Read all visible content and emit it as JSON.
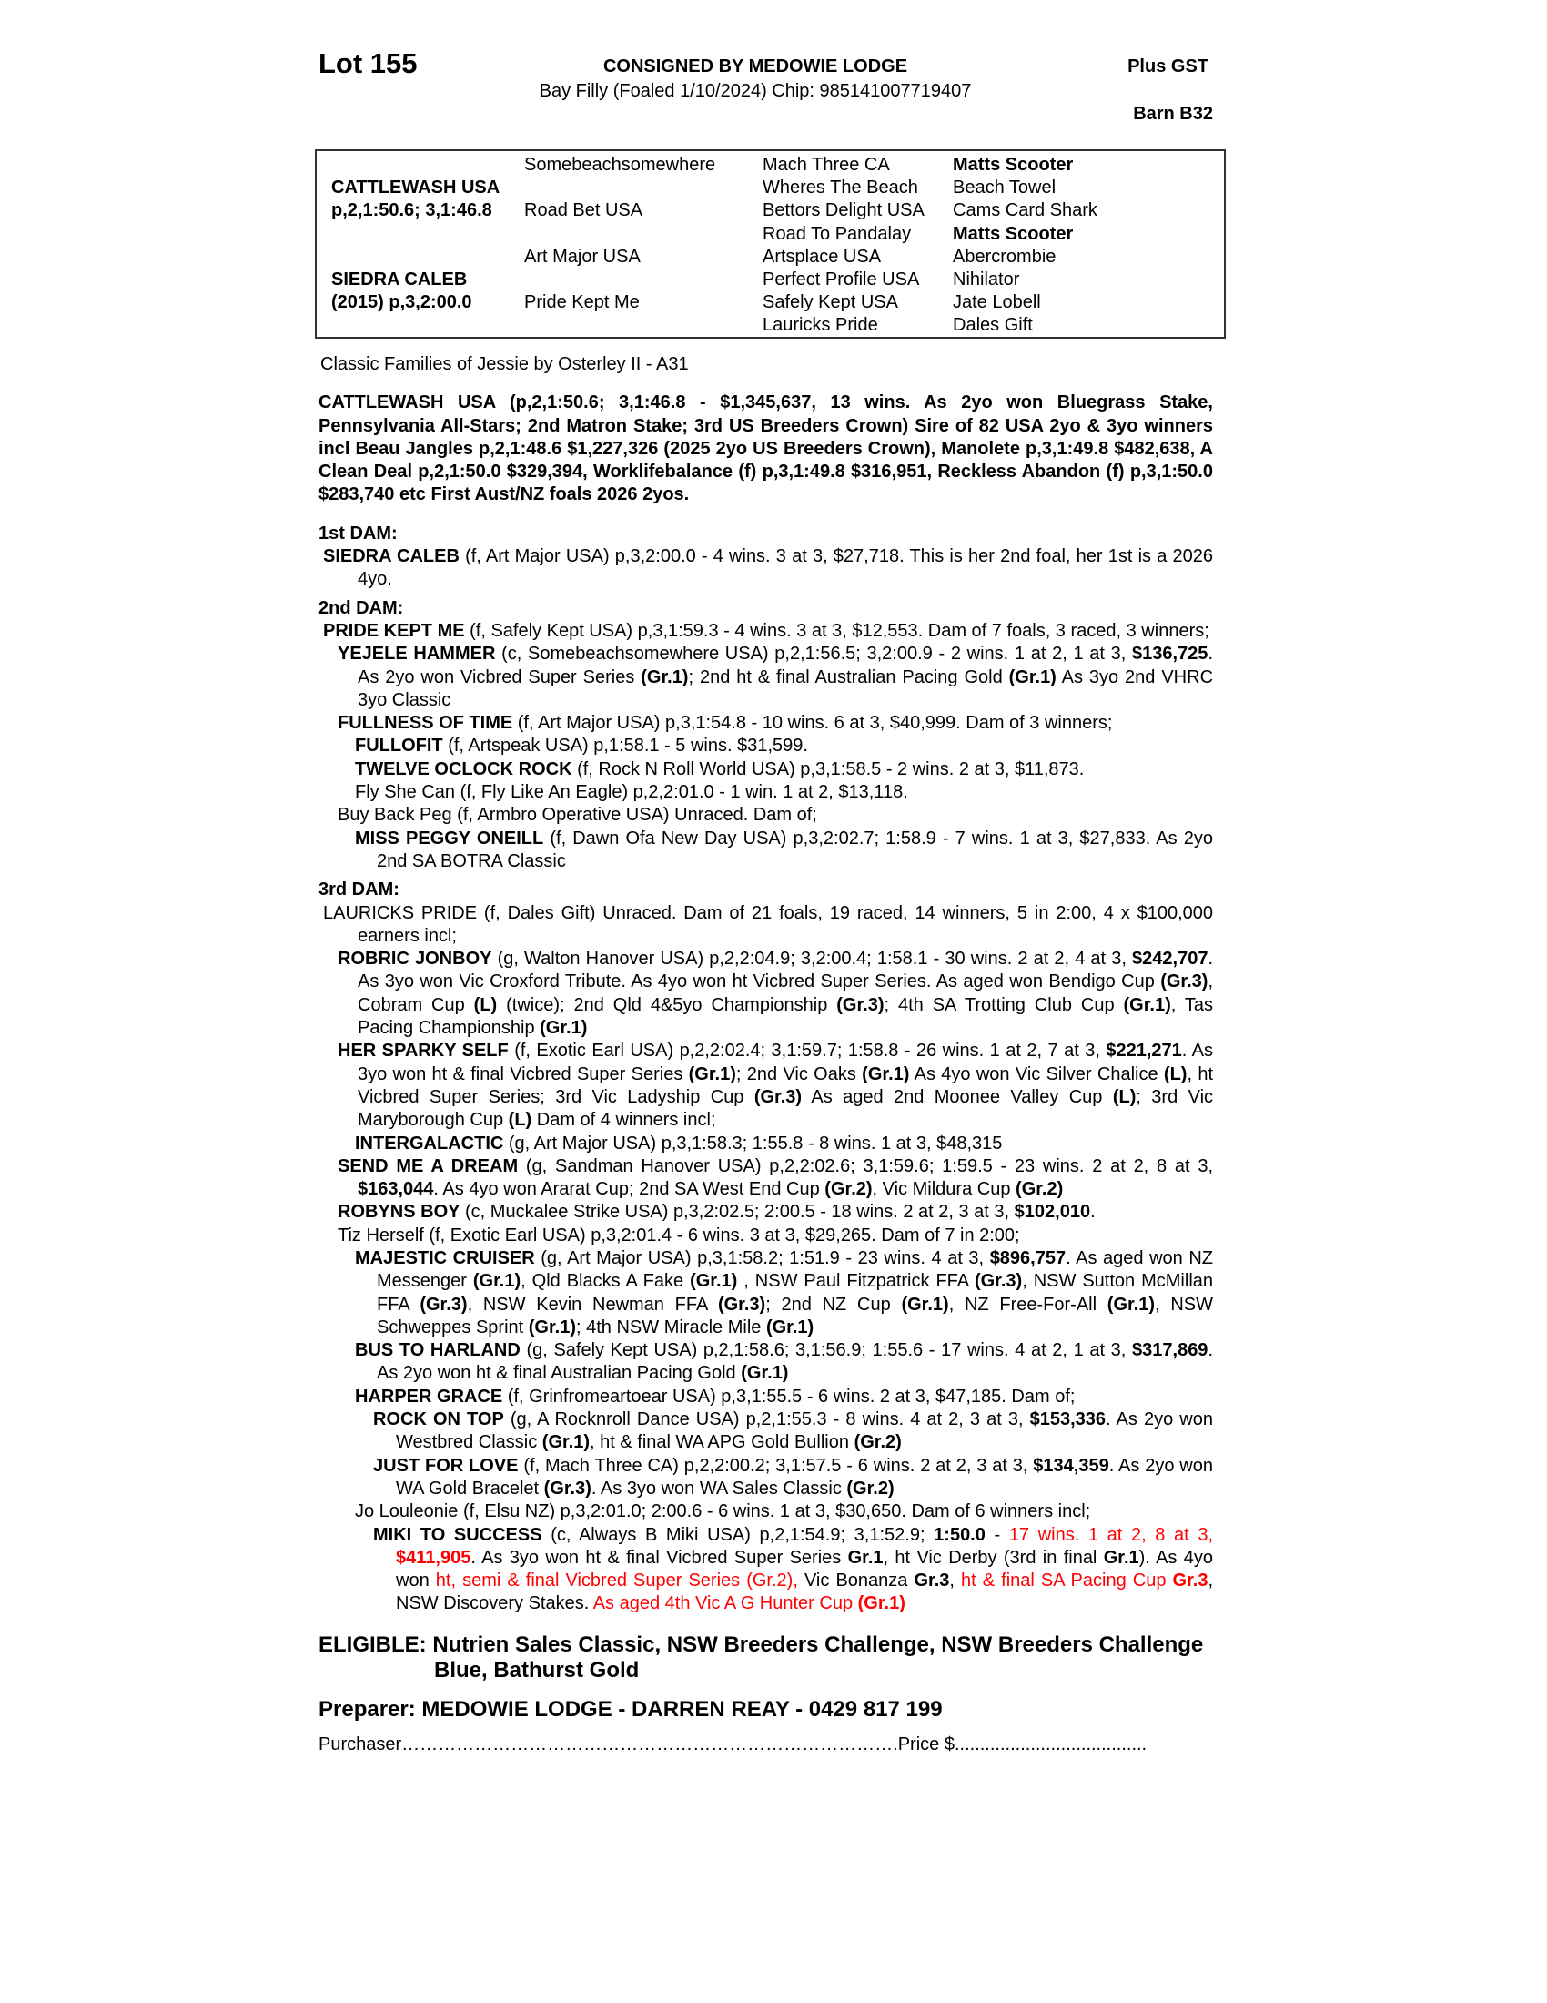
{
  "header": {
    "lot": "Lot 155",
    "consigned": "CONSIGNED BY MEDOWIE LODGE",
    "description": "Bay Filly (Foaled 1/10/2024) Chip: 985141007719407",
    "gst": "Plus  GST",
    "barn": "Barn B32"
  },
  "pedigree": {
    "sire_name": "CATTLEWASH USA",
    "sire_record": "p,2,1:50.6; 3,1:46.8",
    "dam_name": "SIEDRA CALEB",
    "dam_record": "(2015) p,3,2:00.0",
    "gen2": [
      "Somebeachsomewhere",
      "Road Bet USA",
      "Art Major USA",
      "Pride Kept Me"
    ],
    "gen3": [
      "Mach Three CA",
      "Wheres The Beach",
      "Bettors Delight USA",
      "Road To Pandalay",
      "Artsplace USA",
      "Perfect Profile USA",
      "Safely Kept USA",
      "Lauricks Pride"
    ],
    "gen4": [
      "Matts Scooter",
      "Beach Towel",
      "Cams Card Shark",
      "Matts Scooter",
      "Abercrombie",
      "Nihilator",
      "Jate Lobell",
      "Dales Gift"
    ]
  },
  "family": "Classic Families of Jessie by Osterley II - A31",
  "sire_para": "CATTLEWASH USA (p,2,1:50.6; 3,1:46.8 - $1,345,637, 13 wins. As 2yo won Bluegrass Stake, Pennsylvania All-Stars; 2nd Matron Stake; 3rd US Breeders Crown) Sire of 82 USA 2yo & 3yo winners incl Beau Jangles p,2,1:48.6 $1,227,326 (2025 2yo US Breeders Crown), Manolete p,3,1:49.8 $482,638, A Clean Deal p,2,1:50.0 $329,394, Worklifebalance (f) p,3,1:49.8 $316,951, Reckless Abandon (f) p,3,1:50.0 $283,740 etc First Aust/NZ foals 2026 2yos.",
  "sections": [
    {
      "heading": "1st DAM:",
      "paras": [
        {
          "level": 0,
          "runs": [
            {
              "t": "SIEDRA CALEB",
              "s": "b"
            },
            {
              "t": " (f, Art Major USA) p,3,2:00.0 - 4 wins. 3 at 3, $27,718. This is her 2nd foal, her 1st is a 2026 4yo.",
              "s": ""
            }
          ]
        }
      ]
    },
    {
      "heading": "2nd DAM:",
      "paras": [
        {
          "level": 0,
          "runs": [
            {
              "t": "PRIDE KEPT ME",
              "s": "b"
            },
            {
              "t": " (f, Safely Kept USA) p,3,1:59.3 - 4 wins. 3 at 3, $12,553. Dam of 7 foals, 3 raced, 3 winners;",
              "s": ""
            }
          ]
        },
        {
          "level": 1,
          "runs": [
            {
              "t": "YEJELE HAMMER",
              "s": "b"
            },
            {
              "t": " (c, Somebeachsomewhere USA) p,2,1:56.5; 3,2:00.9 - 2 wins. 1 at 2, 1 at 3, ",
              "s": ""
            },
            {
              "t": "$136,725",
              "s": "b"
            },
            {
              "t": ". As 2yo won Vicbred Super Series ",
              "s": ""
            },
            {
              "t": "(Gr.1)",
              "s": "b"
            },
            {
              "t": "; 2nd ht & final Australian Pacing Gold ",
              "s": ""
            },
            {
              "t": "(Gr.1)",
              "s": "b"
            },
            {
              "t": " As 3yo 2nd VHRC 3yo Classic",
              "s": ""
            }
          ]
        },
        {
          "level": 1,
          "runs": [
            {
              "t": "FULLNESS OF TIME",
              "s": "b"
            },
            {
              "t": " (f, Art Major USA) p,3,1:54.8 - 10 wins. 6 at 3, $40,999. Dam of 3 winners;",
              "s": ""
            }
          ]
        },
        {
          "level": 2,
          "runs": [
            {
              "t": "FULLOFIT",
              "s": "b"
            },
            {
              "t": " (f, Artspeak USA) p,1:58.1 - 5 wins. $31,599.",
              "s": ""
            }
          ]
        },
        {
          "level": 2,
          "runs": [
            {
              "t": "TWELVE OCLOCK ROCK",
              "s": "b"
            },
            {
              "t": " (f, Rock N Roll World USA) p,3,1:58.5 - 2 wins. 2 at 3, $11,873.",
              "s": ""
            }
          ]
        },
        {
          "level": 2,
          "runs": [
            {
              "t": "Fly She Can (f, Fly Like An Eagle) p,2,2:01.0 - 1 win. 1 at 2, $13,118.",
              "s": ""
            }
          ]
        },
        {
          "level": 1,
          "runs": [
            {
              "t": "Buy Back Peg (f, Armbro Operative USA) Unraced. Dam of;",
              "s": ""
            }
          ]
        },
        {
          "level": 2,
          "runs": [
            {
              "t": "MISS PEGGY ONEILL",
              "s": "b"
            },
            {
              "t": " (f, Dawn Ofa New Day USA) p,3,2:02.7; 1:58.9 - 7 wins. 1 at 3, $27,833. As 2yo 2nd SA BOTRA Classic",
              "s": ""
            }
          ]
        }
      ]
    },
    {
      "heading": "3rd DAM:",
      "paras": [
        {
          "level": 0,
          "runs": [
            {
              "t": "LAURICKS PRIDE (f, Dales Gift) Unraced. Dam of 21 foals, 19 raced, 14 winners, 5 in 2:00, 4 x $100,000 earners incl;",
              "s": ""
            }
          ]
        },
        {
          "level": 1,
          "runs": [
            {
              "t": "ROBRIC JONBOY",
              "s": "b"
            },
            {
              "t": " (g, Walton Hanover USA) p,2,2:04.9; 3,2:00.4; 1:58.1 - 30 wins. 2 at 2, 4 at 3, ",
              "s": ""
            },
            {
              "t": "$242,707",
              "s": "b"
            },
            {
              "t": ". As 3yo won Vic Croxford Tribute. As 4yo won ht Vicbred Super Series. As aged won Bendigo Cup ",
              "s": ""
            },
            {
              "t": "(Gr.3)",
              "s": "b"
            },
            {
              "t": ", Cobram Cup ",
              "s": ""
            },
            {
              "t": "(L)",
              "s": "b"
            },
            {
              "t": " (twice); 2nd Qld 4&5yo Championship ",
              "s": ""
            },
            {
              "t": "(Gr.3)",
              "s": "b"
            },
            {
              "t": "; 4th SA Trotting Club Cup ",
              "s": ""
            },
            {
              "t": "(Gr.1)",
              "s": "b"
            },
            {
              "t": ", Tas Pacing Championship ",
              "s": ""
            },
            {
              "t": "(Gr.1)",
              "s": "b"
            }
          ]
        },
        {
          "level": 1,
          "runs": [
            {
              "t": "HER SPARKY SELF",
              "s": "b"
            },
            {
              "t": " (f, Exotic Earl USA) p,2,2:02.4; 3,1:59.7; 1:58.8 - 26 wins. 1 at 2, 7 at 3, ",
              "s": ""
            },
            {
              "t": "$221,271",
              "s": "b"
            },
            {
              "t": ". As 3yo won ht & final Vicbred Super Series ",
              "s": ""
            },
            {
              "t": "(Gr.1)",
              "s": "b"
            },
            {
              "t": "; 2nd Vic Oaks ",
              "s": ""
            },
            {
              "t": "(Gr.1)",
              "s": "b"
            },
            {
              "t": " As 4yo won Vic Silver Chalice ",
              "s": ""
            },
            {
              "t": "(L)",
              "s": "b"
            },
            {
              "t": ", ht Vicbred Super Series; 3rd Vic Ladyship Cup ",
              "s": ""
            },
            {
              "t": "(Gr.3)",
              "s": "b"
            },
            {
              "t": " As aged 2nd Moonee Valley Cup ",
              "s": ""
            },
            {
              "t": "(L)",
              "s": "b"
            },
            {
              "t": "; 3rd Vic Maryborough Cup ",
              "s": ""
            },
            {
              "t": "(L)",
              "s": "b"
            },
            {
              "t": " Dam of 4 winners incl;",
              "s": ""
            }
          ]
        },
        {
          "level": 2,
          "runs": [
            {
              "t": "INTERGALACTIC",
              "s": "b"
            },
            {
              "t": " (g, Art Major USA) p,3,1:58.3; 1:55.8 - 8 wins. 1 at 3, $48,315",
              "s": ""
            }
          ]
        },
        {
          "level": 1,
          "runs": [
            {
              "t": "SEND ME A DREAM",
              "s": "b"
            },
            {
              "t": " (g, Sandman Hanover USA) p,2,2:02.6; 3,1:59.6; 1:59.5 - 23 wins. 2 at 2, 8 at 3, ",
              "s": ""
            },
            {
              "t": "$163,044",
              "s": "b"
            },
            {
              "t": ". As 4yo won Ararat Cup; 2nd SA West End Cup ",
              "s": ""
            },
            {
              "t": "(Gr.2)",
              "s": "b"
            },
            {
              "t": ", Vic Mildura Cup ",
              "s": ""
            },
            {
              "t": "(Gr.2)",
              "s": "b"
            }
          ]
        },
        {
          "level": 1,
          "runs": [
            {
              "t": "ROBYNS BOY",
              "s": "b"
            },
            {
              "t": " (c, Muckalee Strike USA) p,3,2:02.5; 2:00.5 - 18 wins. 2 at 2, 3 at 3, ",
              "s": ""
            },
            {
              "t": "$102,010",
              "s": "b"
            },
            {
              "t": ".",
              "s": ""
            }
          ]
        },
        {
          "level": 1,
          "runs": [
            {
              "t": "Tiz Herself (f, Exotic Earl USA) p,3,2:01.4 - 6 wins. 3 at 3, $29,265. Dam of 7 in 2:00;",
              "s": ""
            }
          ]
        },
        {
          "level": 2,
          "runs": [
            {
              "t": "MAJESTIC CRUISER",
              "s": "b"
            },
            {
              "t": " (g, Art Major USA) p,3,1:58.2; 1:51.9 - 23 wins. 4 at 3, ",
              "s": ""
            },
            {
              "t": "$896,757",
              "s": "b"
            },
            {
              "t": ". As aged won NZ Messenger ",
              "s": ""
            },
            {
              "t": "(Gr.1)",
              "s": "b"
            },
            {
              "t": ", Qld Blacks A Fake ",
              "s": ""
            },
            {
              "t": "(Gr.1)",
              "s": "b"
            },
            {
              "t": " , NSW Paul Fitzpatrick FFA ",
              "s": ""
            },
            {
              "t": "(Gr.3)",
              "s": "b"
            },
            {
              "t": ", NSW Sutton McMillan FFA ",
              "s": ""
            },
            {
              "t": "(Gr.3)",
              "s": "b"
            },
            {
              "t": ", NSW Kevin Newman FFA ",
              "s": ""
            },
            {
              "t": "(Gr.3)",
              "s": "b"
            },
            {
              "t": "; 2nd NZ Cup ",
              "s": ""
            },
            {
              "t": "(Gr.1)",
              "s": "b"
            },
            {
              "t": ", NZ Free-For-All ",
              "s": ""
            },
            {
              "t": "(Gr.1)",
              "s": "b"
            },
            {
              "t": ", NSW Schweppes Sprint ",
              "s": ""
            },
            {
              "t": "(Gr.1)",
              "s": "b"
            },
            {
              "t": "; 4th NSW Miracle Mile ",
              "s": ""
            },
            {
              "t": "(Gr.1)",
              "s": "b"
            }
          ]
        },
        {
          "level": 2,
          "runs": [
            {
              "t": "BUS TO HARLAND",
              "s": "b"
            },
            {
              "t": " (g, Safely Kept USA) p,2,1:58.6; 3,1:56.9; 1:55.6 - 17 wins. 4 at 2, 1 at 3, ",
              "s": ""
            },
            {
              "t": "$317,869",
              "s": "b"
            },
            {
              "t": ". As 2yo won ht & final Australian Pacing Gold ",
              "s": ""
            },
            {
              "t": "(Gr.1)",
              "s": "b"
            }
          ]
        },
        {
          "level": 2,
          "runs": [
            {
              "t": "HARPER GRACE",
              "s": "b"
            },
            {
              "t": " (f, Grinfromeartoear USA) p,3,1:55.5 - 6 wins. 2 at 3, $47,185. Dam of;",
              "s": ""
            }
          ]
        },
        {
          "level": 3,
          "runs": [
            {
              "t": "ROCK ON TOP",
              "s": "b"
            },
            {
              "t": " (g, A Rocknroll Dance USA) p,2,1:55.3 - 8 wins. 4 at 2, 3 at 3, ",
              "s": ""
            },
            {
              "t": "$153,336",
              "s": "b"
            },
            {
              "t": ". As 2yo won Westbred Classic ",
              "s": ""
            },
            {
              "t": "(Gr.1)",
              "s": "b"
            },
            {
              "t": ", ht & final WA APG Gold Bullion ",
              "s": ""
            },
            {
              "t": "(Gr.2)",
              "s": "b"
            }
          ]
        },
        {
          "level": 3,
          "runs": [
            {
              "t": "JUST FOR LOVE",
              "s": "b"
            },
            {
              "t": " (f, Mach Three CA) p,2,2:00.2; 3,1:57.5 - 6 wins. 2 at 2, 3 at 3, ",
              "s": ""
            },
            {
              "t": "$134,359",
              "s": "b"
            },
            {
              "t": ". As 2yo won WA Gold Bracelet ",
              "s": ""
            },
            {
              "t": "(Gr.3)",
              "s": "b"
            },
            {
              "t": ". As 3yo won WA Sales Classic ",
              "s": ""
            },
            {
              "t": "(Gr.2)",
              "s": "b"
            }
          ]
        },
        {
          "level": 2,
          "runs": [
            {
              "t": "Jo Louleonie (f, Elsu NZ) p,3,2:01.0; 2:00.6 - 6 wins. 1 at 3, $30,650. Dam of 6 winners incl;",
              "s": ""
            }
          ]
        },
        {
          "level": 3,
          "runs": [
            {
              "t": "MIKI TO SUCCESS",
              "s": "b"
            },
            {
              "t": " (c, Always B Miki USA) p,2,1:54.9; 3,1:52.9; ",
              "s": ""
            },
            {
              "t": "1:50.0",
              "s": "b"
            },
            {
              "t": " - ",
              "s": ""
            },
            {
              "t": "17 wins. 1 at 2, 8 at 3, ",
              "s": "r"
            },
            {
              "t": "$411,905",
              "s": "rb"
            },
            {
              "t": ". As 3yo won ht & final Vicbred Super Series ",
              "s": ""
            },
            {
              "t": "Gr.1",
              "s": "b"
            },
            {
              "t": ", ht Vic Derby (3rd in final ",
              "s": ""
            },
            {
              "t": "Gr.1",
              "s": "b"
            },
            {
              "t": "). As 4yo won ",
              "s": ""
            },
            {
              "t": "ht, semi & final Vicbred Super Series (Gr.2),",
              "s": "r"
            },
            {
              "t": " Vic Bonanza ",
              "s": ""
            },
            {
              "t": "Gr.3",
              "s": "b"
            },
            {
              "t": ", ",
              "s": ""
            },
            {
              "t": "ht & final SA Pacing Cup ",
              "s": "r"
            },
            {
              "t": "Gr.3",
              "s": "rb"
            },
            {
              "t": ", NSW Discovery Stakes. ",
              "s": ""
            },
            {
              "t": "As aged 4th Vic A G Hunter Cup ",
              "s": "r"
            },
            {
              "t": "(Gr.1)",
              "s": "rb"
            }
          ]
        }
      ]
    }
  ],
  "eligible": "ELIGIBLE: Nutrien Sales Classic, NSW Breeders Challenge, NSW Breeders Challenge Blue, Bathurst Gold",
  "preparer": "Preparer: MEDOWIE LODGE - DARREN REAY - 0429 817 199",
  "purchaser_label": "Purchaser……………………………………………………………………….",
  "price_label": "Price $......................................",
  "colors": {
    "highlight": "#ff0000",
    "text": "#000000",
    "border": "#333333"
  }
}
